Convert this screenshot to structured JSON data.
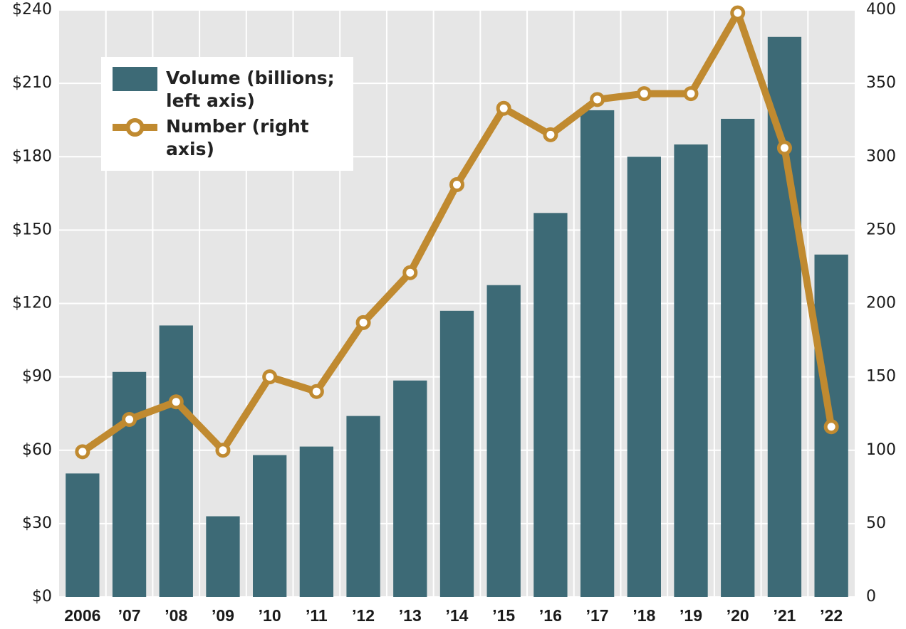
{
  "chart_data": {
    "type": "bar",
    "categories": [
      "2006",
      "’07",
      "’08",
      "’09",
      "’10",
      "’11",
      "’12",
      "’13",
      "’14",
      "’15",
      "’16",
      "’17",
      "’18",
      "’19",
      "’20",
      "’21",
      "’22"
    ],
    "series": [
      {
        "name": "Volume (billions; left axis)",
        "type": "bar",
        "color": "#3d6a76",
        "values": [
          50.5,
          92,
          111,
          33,
          58,
          61.5,
          74,
          88.5,
          117,
          127.5,
          157,
          199,
          180,
          185,
          195.5,
          229,
          140
        ]
      },
      {
        "name": "Number (right axis)",
        "type": "line",
        "axis": "y2",
        "color": "#c08a30",
        "values": [
          99,
          121,
          133,
          100,
          150,
          140,
          187,
          221,
          281,
          333,
          315,
          339,
          343,
          343,
          398,
          306,
          116
        ]
      }
    ],
    "ylim": [
      0,
      240
    ],
    "yticks": [
      {
        "value": 0,
        "label": "$0"
      },
      {
        "value": 30,
        "label": "$30"
      },
      {
        "value": 60,
        "label": "$60"
      },
      {
        "value": 90,
        "label": "$90"
      },
      {
        "value": 120,
        "label": "$120"
      },
      {
        "value": 150,
        "label": "$150"
      },
      {
        "value": 180,
        "label": "$180"
      },
      {
        "value": 210,
        "label": "$210"
      },
      {
        "value": 240,
        "label": "$240"
      }
    ],
    "y2lim": [
      0,
      400
    ],
    "y2ticks": [
      0,
      50,
      100,
      150,
      200,
      250,
      300,
      350,
      400
    ],
    "grid": true,
    "legend": "upper left"
  }
}
